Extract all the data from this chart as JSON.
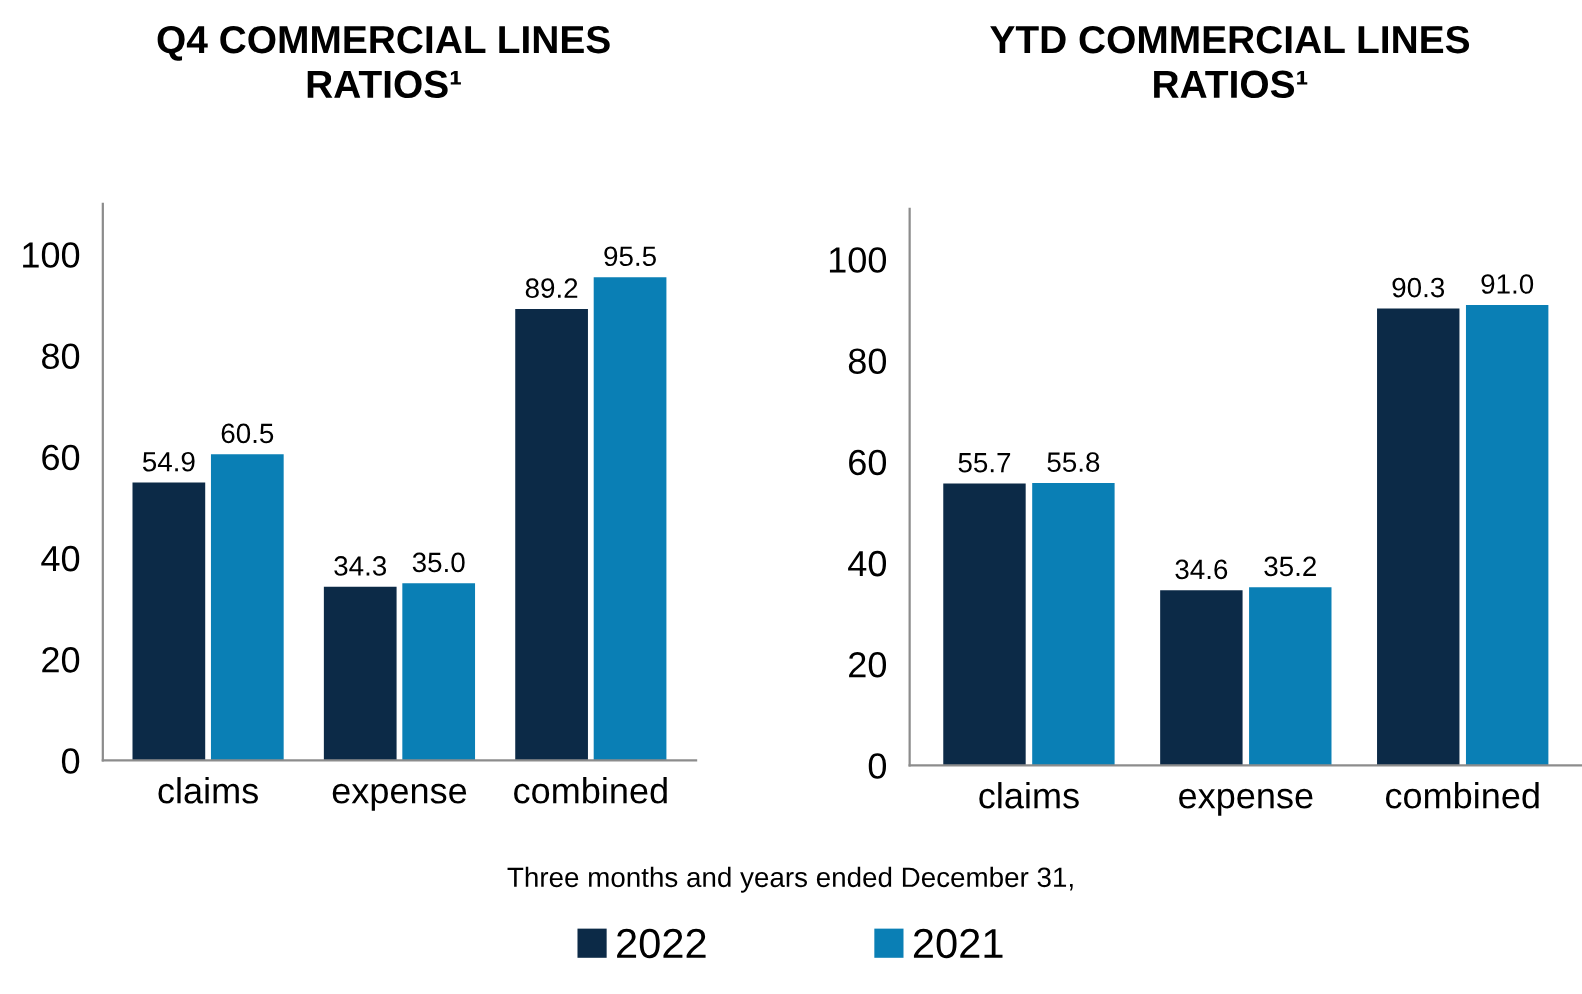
{
  "chart_data": [
    {
      "type": "bar",
      "title": "Q4 COMMERCIAL LINES\nRATIOS¹",
      "categories": [
        "claims",
        "expense",
        "combined"
      ],
      "series": [
        {
          "name": "2022",
          "color": "#0c2a47",
          "values": [
            54.9,
            34.3,
            89.2
          ],
          "value_labels": [
            "54.9",
            "34.3",
            "89.2"
          ]
        },
        {
          "name": "2021",
          "color": "#0a7fb5",
          "values": [
            60.5,
            35.0,
            95.5
          ],
          "value_labels": [
            "60.5",
            "35.0",
            "95.5"
          ]
        }
      ],
      "ylim": [
        0,
        110
      ],
      "yticks": [
        0,
        20,
        40,
        60,
        80,
        100
      ],
      "grid": false,
      "legend": "bottom",
      "annotations": [
        "Three months and years ended December 31,"
      ]
    },
    {
      "type": "bar",
      "title": "YTD COMMERCIAL LINES\nRATIOS¹",
      "categories": [
        "claims",
        "expense",
        "combined"
      ],
      "series": [
        {
          "name": "2022",
          "color": "#0c2a47",
          "values": [
            55.7,
            34.6,
            90.3
          ],
          "value_labels": [
            "55.7",
            "34.6",
            "90.3"
          ]
        },
        {
          "name": "2021",
          "color": "#0a7fb5",
          "values": [
            55.8,
            35.2,
            91.0
          ],
          "value_labels": [
            "55.8",
            "35.2",
            "91.0"
          ]
        }
      ],
      "ylim": [
        0,
        110
      ],
      "yticks": [
        0,
        20,
        40,
        60,
        80,
        100
      ],
      "grid": false,
      "legend": "bottom"
    }
  ]
}
